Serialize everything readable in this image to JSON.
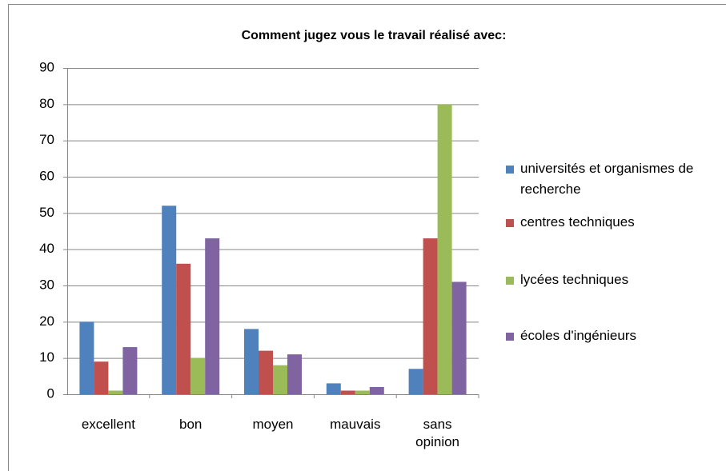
{
  "chart_data": {
    "type": "bar",
    "title": "Comment jugez vous le travail réalisé avec:",
    "categories": [
      "excellent",
      "bon",
      "moyen",
      "mauvais",
      "sans opinion"
    ],
    "series": [
      {
        "name": "universités et organismes de recherche",
        "color": "#4f81bd",
        "values": [
          20,
          52,
          18,
          3,
          7
        ]
      },
      {
        "name": "centres techniques",
        "color": "#c0504d",
        "values": [
          9,
          36,
          12,
          1,
          43
        ]
      },
      {
        "name": "lycées techniques",
        "color": "#9bbb59",
        "values": [
          1,
          10,
          8,
          1,
          80
        ]
      },
      {
        "name": "écoles d'ingénieurs",
        "color": "#8064a2",
        "values": [
          13,
          43,
          11,
          2,
          31
        ]
      }
    ],
    "ylim": [
      0,
      90
    ],
    "yticks": [
      0,
      10,
      20,
      30,
      40,
      50,
      60,
      70,
      80,
      90
    ],
    "grid": true,
    "legend": "right"
  }
}
